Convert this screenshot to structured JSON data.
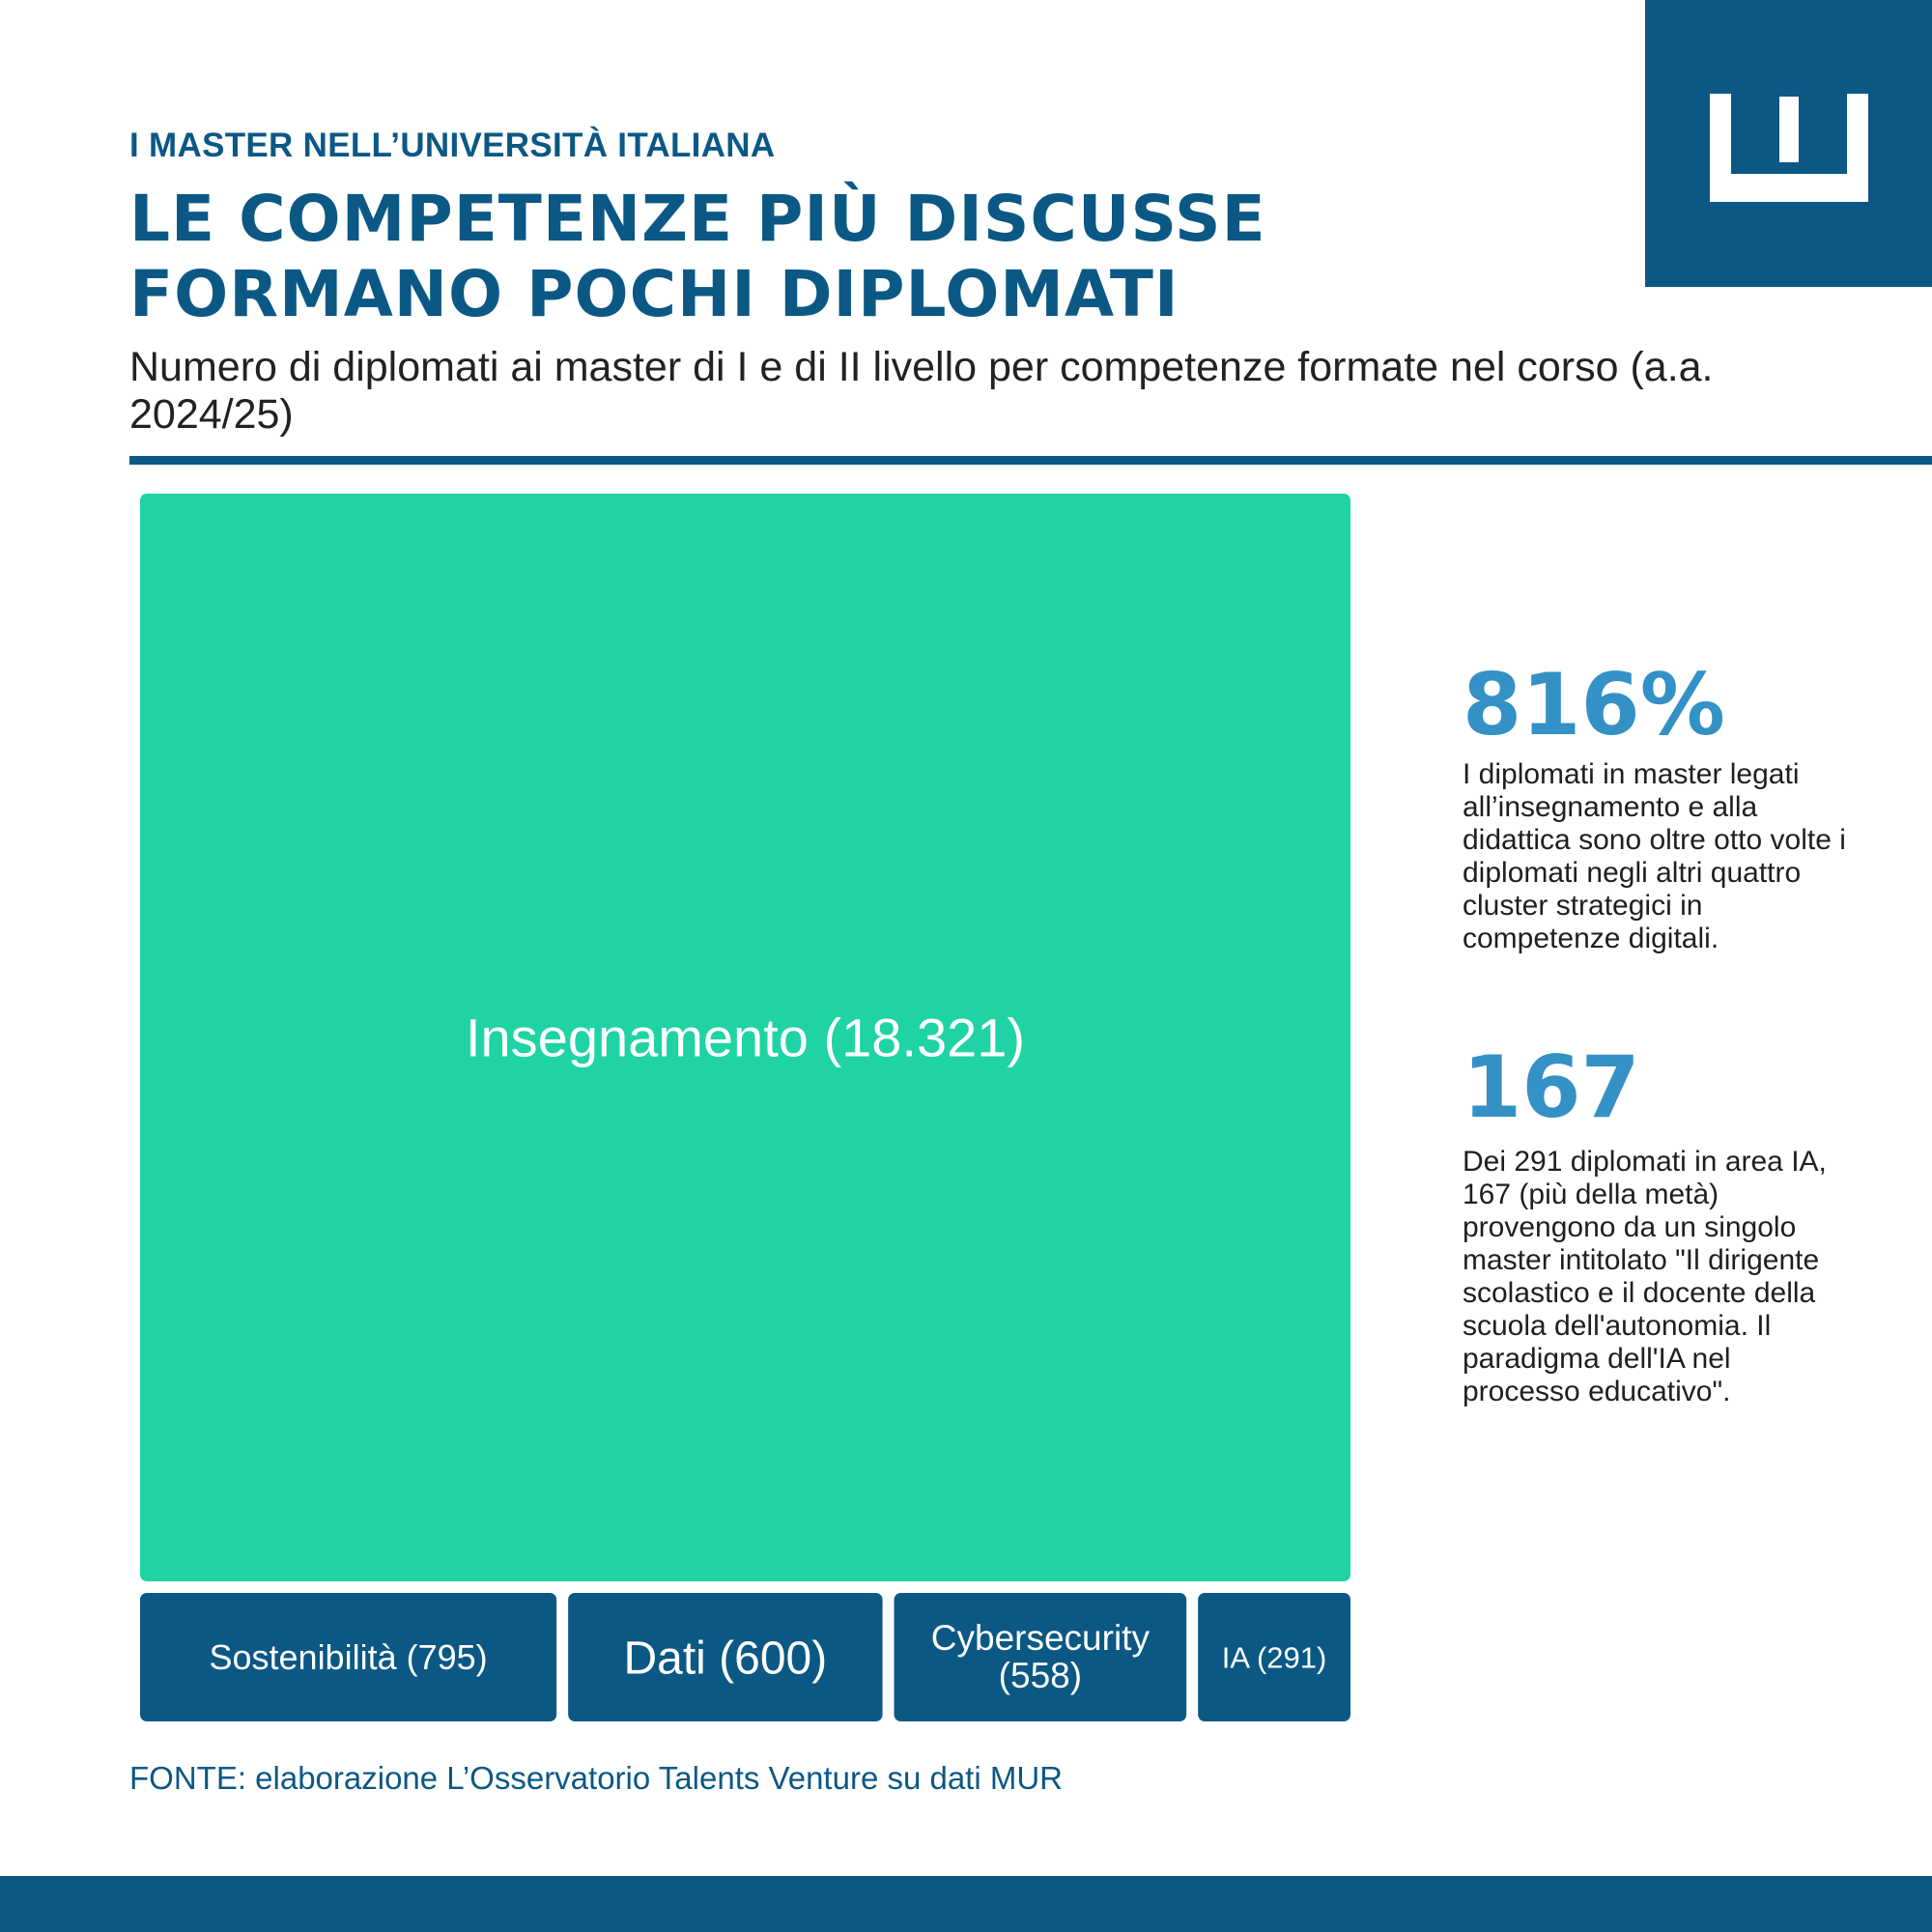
{
  "header": {
    "kicker": "I MASTER NELL’UNIVERSITÀ ITALIANA",
    "title": "LE COMPETENZE PIÙ DISCUSSE FORMANO POCHI DIPLOMATI",
    "subtitle": "Numero di diplomati ai master di I e di II livello per competenze formate nel corso (a.a. 2024/25)"
  },
  "colors": {
    "brand": "#0b5885",
    "highlight": "#1fd3a5",
    "stat_accent": "#3391c6"
  },
  "chart_data": {
    "type": "treemap",
    "title": "",
    "categories": [
      "Insegnamento",
      "Sostenibilità",
      "Dati",
      "Cybersecurity",
      "IA"
    ],
    "values": [
      18321,
      795,
      600,
      558,
      291
    ],
    "labels": [
      "Insegnamento (18.321)",
      "Sostenibilità (795)",
      "Dati (600)",
      "Cybersecurity (558)",
      "IA (291)"
    ],
    "colors": [
      "#1fd3a5",
      "#0b5885",
      "#0b5885",
      "#0b5885",
      "#0b5885"
    ]
  },
  "stats": [
    {
      "number": "816%",
      "text": "I diplomati in master legati all’insegnamento e alla didattica sono oltre otto volte i diplomati negli altri quattro cluster strategici in competenze digitali."
    },
    {
      "number": "167",
      "text": "Dei 291 diplomati in area IA, 167 (più della metà) provengono da un singolo master intitolato \"Il dirigente scolastico e il docente della scuola dell'autonomia. Il paradigma dell'IA nel processo educativo\"."
    }
  ],
  "source": "FONTE: elaborazione L’Osservatorio Talents Venture su dati MUR"
}
